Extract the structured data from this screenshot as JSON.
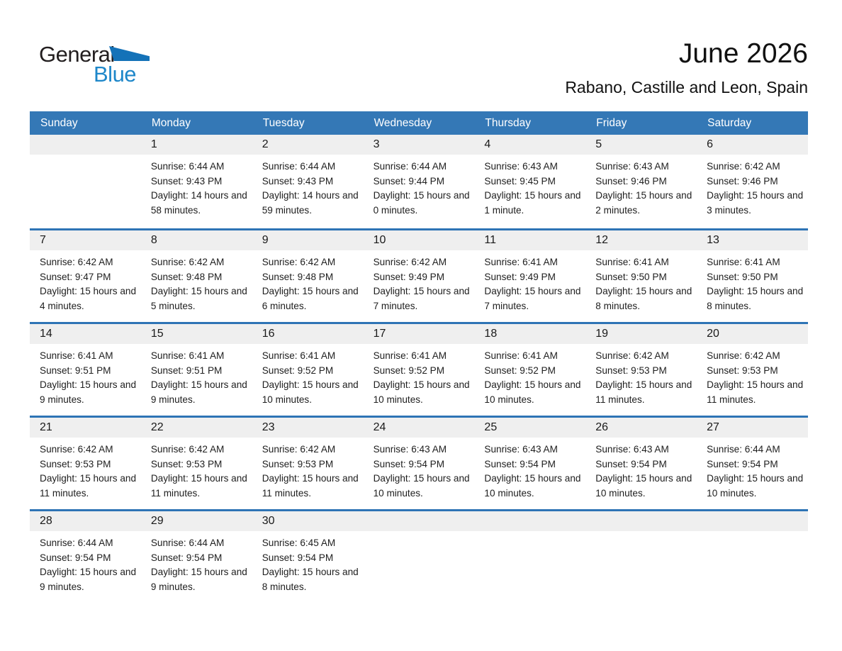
{
  "logo": {
    "word1": "General",
    "word2": "Blue",
    "triangle_icon": "blue-pennant-triangle"
  },
  "page": {
    "title": "June 2026",
    "subtitle": "Rabano, Castille and Leon, Spain"
  },
  "colors": {
    "header_bg": "#3478b6",
    "week_separator": "#2e74b5",
    "daynum_strip_bg": "#efefef",
    "weekday_text": "#ffffff",
    "logo_blue": "#1e87c9",
    "logo_triangle": "#1472b8"
  },
  "calendar": {
    "weekdays": [
      "Sunday",
      "Monday",
      "Tuesday",
      "Wednesday",
      "Thursday",
      "Friday",
      "Saturday"
    ],
    "weeks": [
      [
        {},
        {
          "day": "1",
          "sunrise": "Sunrise: 6:44 AM",
          "sunset": "Sunset: 9:43 PM",
          "daylight": "Daylight: 14 hours and 58 minutes."
        },
        {
          "day": "2",
          "sunrise": "Sunrise: 6:44 AM",
          "sunset": "Sunset: 9:43 PM",
          "daylight": "Daylight: 14 hours and 59 minutes."
        },
        {
          "day": "3",
          "sunrise": "Sunrise: 6:44 AM",
          "sunset": "Sunset: 9:44 PM",
          "daylight": "Daylight: 15 hours and 0 minutes."
        },
        {
          "day": "4",
          "sunrise": "Sunrise: 6:43 AM",
          "sunset": "Sunset: 9:45 PM",
          "daylight": "Daylight: 15 hours and 1 minute."
        },
        {
          "day": "5",
          "sunrise": "Sunrise: 6:43 AM",
          "sunset": "Sunset: 9:46 PM",
          "daylight": "Daylight: 15 hours and 2 minutes."
        },
        {
          "day": "6",
          "sunrise": "Sunrise: 6:42 AM",
          "sunset": "Sunset: 9:46 PM",
          "daylight": "Daylight: 15 hours and 3 minutes."
        }
      ],
      [
        {
          "day": "7",
          "sunrise": "Sunrise: 6:42 AM",
          "sunset": "Sunset: 9:47 PM",
          "daylight": "Daylight: 15 hours and 4 minutes."
        },
        {
          "day": "8",
          "sunrise": "Sunrise: 6:42 AM",
          "sunset": "Sunset: 9:48 PM",
          "daylight": "Daylight: 15 hours and 5 minutes."
        },
        {
          "day": "9",
          "sunrise": "Sunrise: 6:42 AM",
          "sunset": "Sunset: 9:48 PM",
          "daylight": "Daylight: 15 hours and 6 minutes."
        },
        {
          "day": "10",
          "sunrise": "Sunrise: 6:42 AM",
          "sunset": "Sunset: 9:49 PM",
          "daylight": "Daylight: 15 hours and 7 minutes."
        },
        {
          "day": "11",
          "sunrise": "Sunrise: 6:41 AM",
          "sunset": "Sunset: 9:49 PM",
          "daylight": "Daylight: 15 hours and 7 minutes."
        },
        {
          "day": "12",
          "sunrise": "Sunrise: 6:41 AM",
          "sunset": "Sunset: 9:50 PM",
          "daylight": "Daylight: 15 hours and 8 minutes."
        },
        {
          "day": "13",
          "sunrise": "Sunrise: 6:41 AM",
          "sunset": "Sunset: 9:50 PM",
          "daylight": "Daylight: 15 hours and 8 minutes."
        }
      ],
      [
        {
          "day": "14",
          "sunrise": "Sunrise: 6:41 AM",
          "sunset": "Sunset: 9:51 PM",
          "daylight": "Daylight: 15 hours and 9 minutes."
        },
        {
          "day": "15",
          "sunrise": "Sunrise: 6:41 AM",
          "sunset": "Sunset: 9:51 PM",
          "daylight": "Daylight: 15 hours and 9 minutes."
        },
        {
          "day": "16",
          "sunrise": "Sunrise: 6:41 AM",
          "sunset": "Sunset: 9:52 PM",
          "daylight": "Daylight: 15 hours and 10 minutes."
        },
        {
          "day": "17",
          "sunrise": "Sunrise: 6:41 AM",
          "sunset": "Sunset: 9:52 PM",
          "daylight": "Daylight: 15 hours and 10 minutes."
        },
        {
          "day": "18",
          "sunrise": "Sunrise: 6:41 AM",
          "sunset": "Sunset: 9:52 PM",
          "daylight": "Daylight: 15 hours and 10 minutes."
        },
        {
          "day": "19",
          "sunrise": "Sunrise: 6:42 AM",
          "sunset": "Sunset: 9:53 PM",
          "daylight": "Daylight: 15 hours and 11 minutes."
        },
        {
          "day": "20",
          "sunrise": "Sunrise: 6:42 AM",
          "sunset": "Sunset: 9:53 PM",
          "daylight": "Daylight: 15 hours and 11 minutes."
        }
      ],
      [
        {
          "day": "21",
          "sunrise": "Sunrise: 6:42 AM",
          "sunset": "Sunset: 9:53 PM",
          "daylight": "Daylight: 15 hours and 11 minutes."
        },
        {
          "day": "22",
          "sunrise": "Sunrise: 6:42 AM",
          "sunset": "Sunset: 9:53 PM",
          "daylight": "Daylight: 15 hours and 11 minutes."
        },
        {
          "day": "23",
          "sunrise": "Sunrise: 6:42 AM",
          "sunset": "Sunset: 9:53 PM",
          "daylight": "Daylight: 15 hours and 11 minutes."
        },
        {
          "day": "24",
          "sunrise": "Sunrise: 6:43 AM",
          "sunset": "Sunset: 9:54 PM",
          "daylight": "Daylight: 15 hours and 10 minutes."
        },
        {
          "day": "25",
          "sunrise": "Sunrise: 6:43 AM",
          "sunset": "Sunset: 9:54 PM",
          "daylight": "Daylight: 15 hours and 10 minutes."
        },
        {
          "day": "26",
          "sunrise": "Sunrise: 6:43 AM",
          "sunset": "Sunset: 9:54 PM",
          "daylight": "Daylight: 15 hours and 10 minutes."
        },
        {
          "day": "27",
          "sunrise": "Sunrise: 6:44 AM",
          "sunset": "Sunset: 9:54 PM",
          "daylight": "Daylight: 15 hours and 10 minutes."
        }
      ],
      [
        {
          "day": "28",
          "sunrise": "Sunrise: 6:44 AM",
          "sunset": "Sunset: 9:54 PM",
          "daylight": "Daylight: 15 hours and 9 minutes."
        },
        {
          "day": "29",
          "sunrise": "Sunrise: 6:44 AM",
          "sunset": "Sunset: 9:54 PM",
          "daylight": "Daylight: 15 hours and 9 minutes."
        },
        {
          "day": "30",
          "sunrise": "Sunrise: 6:45 AM",
          "sunset": "Sunset: 9:54 PM",
          "daylight": "Daylight: 15 hours and 8 minutes."
        },
        {},
        {},
        {},
        {}
      ]
    ]
  }
}
